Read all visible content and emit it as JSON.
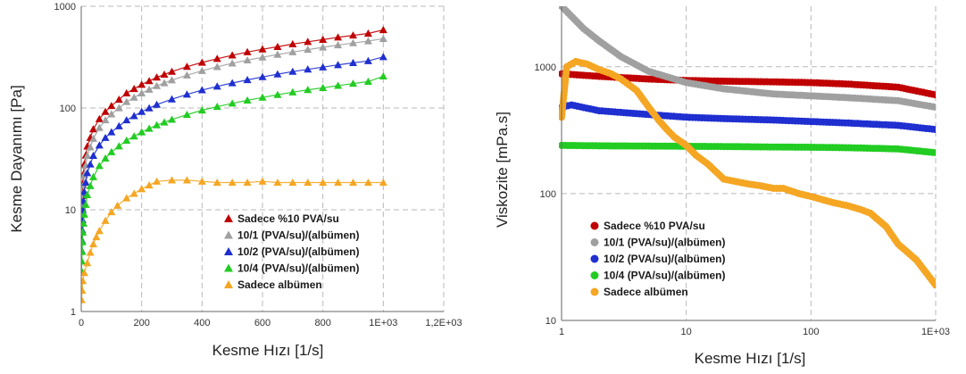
{
  "chart_data": [
    {
      "type": "scatter",
      "xlabel": "Kesme Hızı [1/s]",
      "ylabel": "Kesme Dayanımı [Pa]",
      "xscale": "linear",
      "yscale": "log",
      "xlim": [
        0,
        1200
      ],
      "ylim": [
        1,
        1000
      ],
      "grid": true,
      "legend_position": "bottom-right",
      "xticks": [
        0,
        200,
        400,
        600,
        800,
        1000,
        1200
      ],
      "xtick_labels": [
        "0",
        "200",
        "400",
        "600",
        "800",
        "1E+03",
        "1,2E+03"
      ],
      "yticks": [
        1,
        10,
        100,
        1000
      ],
      "ytick_labels": [
        "1",
        "10",
        "100",
        "1000"
      ],
      "series": [
        {
          "name": "Sadece %10 PVA/su",
          "color": "#c00000",
          "marker": "triangle",
          "x": [
            1,
            5,
            10,
            20,
            40,
            60,
            80,
            100,
            150,
            200,
            250,
            300,
            350,
            400,
            450,
            500,
            550,
            600,
            650,
            700,
            750,
            800,
            850,
            900,
            950,
            1000
          ],
          "y": [
            8,
            18,
            28,
            42,
            62,
            78,
            92,
            105,
            140,
            170,
            200,
            228,
            255,
            280,
            305,
            330,
            355,
            378,
            400,
            425,
            448,
            470,
            495,
            518,
            540,
            585
          ]
        },
        {
          "name": "10/1 (PVA/su)/(albümen)",
          "color": "#a0a0a0",
          "marker": "triangle",
          "x": [
            1,
            5,
            10,
            20,
            40,
            60,
            80,
            100,
            150,
            200,
            250,
            300,
            350,
            400,
            450,
            500,
            550,
            600,
            650,
            700,
            750,
            800,
            850,
            900,
            950,
            1000
          ],
          "y": [
            6,
            14,
            22,
            34,
            50,
            64,
            76,
            87,
            115,
            140,
            165,
            188,
            210,
            232,
            254,
            275,
            295,
            315,
            335,
            355,
            375,
            395,
            415,
            435,
            455,
            480
          ]
        },
        {
          "name": "10/2 (PVA/su)/(albümen)",
          "color": "#1f2fd0",
          "marker": "triangle",
          "x": [
            1,
            5,
            10,
            20,
            40,
            60,
            80,
            100,
            150,
            200,
            250,
            300,
            350,
            400,
            450,
            500,
            550,
            600,
            650,
            700,
            750,
            800,
            850,
            900,
            950,
            1000
          ],
          "y": [
            4,
            10,
            15,
            23,
            34,
            43,
            51,
            58,
            76,
            92,
            108,
            122,
            136,
            150,
            163,
            176,
            189,
            202,
            215,
            228,
            240,
            252,
            265,
            278,
            290,
            318
          ]
        },
        {
          "name": "10/4 (PVA/su)/(albümen)",
          "color": "#22cc22",
          "marker": "triangle",
          "x": [
            1,
            5,
            10,
            20,
            40,
            60,
            80,
            100,
            150,
            200,
            250,
            300,
            350,
            400,
            450,
            500,
            550,
            600,
            650,
            700,
            750,
            800,
            850,
            900,
            950,
            1000
          ],
          "y": [
            2.5,
            6,
            9,
            14,
            21,
            27,
            32,
            37,
            48,
            58,
            68,
            77,
            86,
            95,
            103,
            111,
            119,
            127,
            135,
            143,
            151,
            158,
            166,
            174,
            182,
            205
          ]
        },
        {
          "name": "Sadece albümen",
          "color": "#f5a623",
          "marker": "triangle",
          "x": [
            1,
            5,
            10,
            20,
            30,
            40,
            50,
            60,
            80,
            100,
            120,
            150,
            200,
            250,
            300,
            350,
            400,
            450,
            500,
            550,
            600,
            650,
            700,
            750,
            800,
            850,
            900,
            950,
            1000
          ],
          "y": [
            1.3,
            2,
            2.4,
            3,
            3.8,
            4.6,
            5.4,
            6.2,
            7.8,
            9.5,
            11,
            13,
            16,
            19,
            19.5,
            19.5,
            19,
            18.5,
            18.5,
            18.5,
            19,
            18.5,
            18.5,
            18.5,
            18.5,
            18.5,
            18.5,
            18.5,
            18.5
          ]
        }
      ]
    },
    {
      "type": "scatter",
      "xlabel": "Kesme Hızı [1/s]",
      "ylabel": "Viskozite [mPa.s]",
      "xscale": "log",
      "yscale": "log",
      "xlim": [
        1,
        1000
      ],
      "ylim": [
        10,
        3000
      ],
      "grid": true,
      "legend_position": "bottom-left",
      "xticks": [
        1,
        10,
        100,
        1000
      ],
      "xtick_labels": [
        "1",
        "10",
        "100",
        "1E+03"
      ],
      "yticks": [
        10,
        100,
        1000
      ],
      "ytick_labels": [
        "10",
        "100",
        "1000"
      ],
      "series": [
        {
          "name": "Sadece %10 PVA/su",
          "color": "#c00000",
          "marker": "circle",
          "x": [
            1,
            2,
            5,
            10,
            20,
            50,
            100,
            200,
            500,
            1000
          ],
          "y": [
            880,
            840,
            800,
            780,
            770,
            760,
            750,
            730,
            690,
            600
          ]
        },
        {
          "name": "10/1 (PVA/su)/(albümen)",
          "color": "#a0a0a0",
          "marker": "circle",
          "x": [
            1,
            1.5,
            2,
            3,
            5,
            10,
            20,
            50,
            100,
            200,
            500,
            1000
          ],
          "y": [
            3000,
            2000,
            1600,
            1200,
            920,
            750,
            670,
            610,
            590,
            570,
            540,
            480
          ]
        },
        {
          "name": "10/2 (PVA/su)/(albümen)",
          "color": "#1f2fd0",
          "marker": "circle",
          "x": [
            1,
            1.2,
            2,
            5,
            10,
            20,
            50,
            100,
            200,
            500,
            1000
          ],
          "y": [
            480,
            500,
            450,
            420,
            400,
            390,
            380,
            370,
            360,
            345,
            320
          ]
        },
        {
          "name": "10/4 (PVA/su)/(albümen)",
          "color": "#22cc22",
          "marker": "circle",
          "x": [
            1,
            2,
            5,
            10,
            20,
            50,
            100,
            200,
            500,
            1000
          ],
          "y": [
            240,
            238,
            237,
            236,
            235,
            233,
            232,
            230,
            225,
            210
          ]
        },
        {
          "name": "Sadece albümen",
          "color": "#f5a623",
          "marker": "circle",
          "x": [
            1,
            1.1,
            1.3,
            1.6,
            2,
            2.5,
            3,
            4,
            5,
            6,
            7,
            8,
            10,
            12,
            15,
            20,
            30,
            40,
            50,
            60,
            80,
            100,
            150,
            200,
            250,
            300,
            400,
            500,
            700,
            1000
          ],
          "y": [
            400,
            1000,
            1100,
            1050,
            950,
            880,
            800,
            650,
            480,
            380,
            320,
            280,
            240,
            200,
            170,
            130,
            120,
            115,
            110,
            110,
            100,
            95,
            85,
            80,
            75,
            70,
            55,
            40,
            30,
            19
          ]
        }
      ]
    }
  ]
}
